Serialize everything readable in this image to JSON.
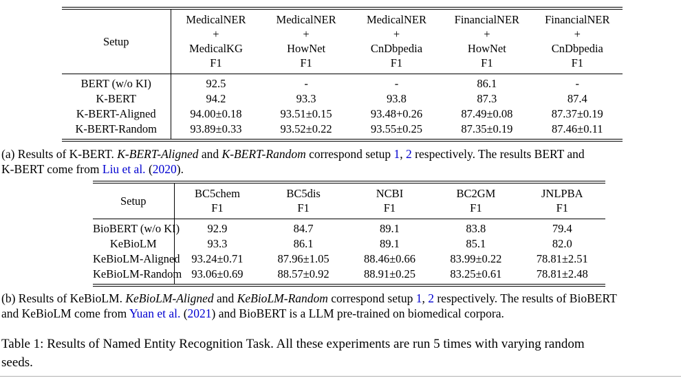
{
  "colors": {
    "link_blue": "#0000d0",
    "text": "#000000",
    "bottom_rule_gray": "#b0b0b0"
  },
  "table_a": {
    "setup_header": "Setup",
    "columns": [
      [
        "MedicalNER",
        "+",
        "MedicalKG",
        "F1"
      ],
      [
        "MedicalNER",
        "+",
        "HowNet",
        "F1"
      ],
      [
        "MedicalNER",
        "+",
        "CnDbpedia",
        "F1"
      ],
      [
        "FinancialNER",
        "+",
        "HowNet",
        "F1"
      ],
      [
        "FinancialNER",
        "+",
        "CnDbpedia",
        "F1"
      ]
    ],
    "rows": [
      {
        "setup": "BERT (w/o KI)",
        "cells": [
          {
            "v": "92.5",
            "b": false
          },
          {
            "v": "-",
            "b": false
          },
          {
            "v": "-",
            "b": false
          },
          {
            "v": "86.1",
            "b": false
          },
          {
            "v": "-",
            "b": false
          }
        ]
      },
      {
        "setup": "K-BERT",
        "cells": [
          {
            "v": "94.2",
            "b": false
          },
          {
            "v": "93.3",
            "b": false
          },
          {
            "v": "93.8",
            "b": false
          },
          {
            "v": "87.3",
            "b": false
          },
          {
            "v": "87.4",
            "b": false
          }
        ]
      },
      {
        "setup": "K-BERT-Aligned",
        "cells": [
          {
            "v": "94.00±0.18",
            "b": true
          },
          {
            "v": "93.51±0.15",
            "b": false
          },
          {
            "v": "93.48+0.26",
            "b": false
          },
          {
            "v": "87.49±0.08",
            "b": true
          },
          {
            "v": "87.37±0.19",
            "b": false
          }
        ]
      },
      {
        "setup": "K-BERT-Random",
        "cells": [
          {
            "v": "93.89±0.33",
            "b": false
          },
          {
            "v": "93.52±0.22",
            "b": true
          },
          {
            "v": "93.55±0.25",
            "b": true
          },
          {
            "v": "87.35±0.19",
            "b": false
          },
          {
            "v": "87.46±0.11",
            "b": true
          }
        ]
      }
    ]
  },
  "caption_a": {
    "segments": [
      {
        "t": "(a) Results of K-BERT. ",
        "s": "plain"
      },
      {
        "t": "K-BERT-Aligned",
        "s": "italic"
      },
      {
        "t": " and ",
        "s": "plain"
      },
      {
        "t": "K-BERT-Random",
        "s": "italic"
      },
      {
        "t": " correspond setup ",
        "s": "plain"
      },
      {
        "t": "1",
        "s": "link"
      },
      {
        "t": ", ",
        "s": "plain"
      },
      {
        "t": "2",
        "s": "link"
      },
      {
        "t": " respectively.  The results BERT and",
        "s": "plain"
      },
      {
        "t": "",
        "s": "br"
      },
      {
        "t": "K-BERT come from ",
        "s": "plain"
      },
      {
        "t": "Liu et al.",
        "s": "link"
      },
      {
        "t": " (",
        "s": "plain"
      },
      {
        "t": "2020",
        "s": "link"
      },
      {
        "t": ").",
        "s": "plain"
      }
    ]
  },
  "table_b": {
    "setup_header": "Setup",
    "columns": [
      [
        "BC5chem",
        "F1"
      ],
      [
        "BC5dis",
        "F1"
      ],
      [
        "NCBI",
        "F1"
      ],
      [
        "BC2GM",
        "F1"
      ],
      [
        "JNLPBA",
        "F1"
      ]
    ],
    "rows": [
      {
        "setup": "BioBERT (w/o KI)",
        "cells": [
          {
            "v": "92.9",
            "b": false
          },
          {
            "v": "84.7",
            "b": false
          },
          {
            "v": "89.1",
            "b": false
          },
          {
            "v": "83.8",
            "b": false
          },
          {
            "v": "79.4",
            "b": false
          }
        ]
      },
      {
        "setup": "KeBioLM",
        "cells": [
          {
            "v": "93.3",
            "b": false
          },
          {
            "v": "86.1",
            "b": false
          },
          {
            "v": "89.1",
            "b": false
          },
          {
            "v": "85.1",
            "b": false
          },
          {
            "v": "82.0",
            "b": false
          }
        ]
      },
      {
        "setup": "KeBioLM-Aligned",
        "cells": [
          {
            "v": "93.24±0.71",
            "b": true
          },
          {
            "v": "87.96±1.05",
            "b": false
          },
          {
            "v": "88.46±0.66",
            "b": false
          },
          {
            "v": "83.99±0.22",
            "b": true
          },
          {
            "v": "78.81±2.51",
            "b": false
          }
        ]
      },
      {
        "setup": "KeBioLM-Random",
        "cells": [
          {
            "v": "93.06±0.69",
            "b": false
          },
          {
            "v": "88.57±0.92",
            "b": true
          },
          {
            "v": "88.91±0.25",
            "b": true
          },
          {
            "v": "83.25±0.61",
            "b": false
          },
          {
            "v": "78.81±2.48",
            "b": true
          }
        ]
      }
    ]
  },
  "caption_b": {
    "segments": [
      {
        "t": "(b) Results of KeBioLM. ",
        "s": "plain"
      },
      {
        "t": "KeBioLM-Aligned",
        "s": "italic"
      },
      {
        "t": " and ",
        "s": "plain"
      },
      {
        "t": "KeBioLM-Random",
        "s": "italic"
      },
      {
        "t": " correspond setup ",
        "s": "plain"
      },
      {
        "t": "1",
        "s": "link"
      },
      {
        "t": ", ",
        "s": "plain"
      },
      {
        "t": "2",
        "s": "link"
      },
      {
        "t": " respectively.  The results of BioBERT",
        "s": "plain"
      },
      {
        "t": "",
        "s": "br"
      },
      {
        "t": "and KeBioLM come from ",
        "s": "plain"
      },
      {
        "t": "Yuan et al.",
        "s": "link"
      },
      {
        "t": " (",
        "s": "plain"
      },
      {
        "t": "2021",
        "s": "link"
      },
      {
        "t": ") and BioBERT is a LLM pre-trained on biomedical corpora.",
        "s": "plain"
      }
    ]
  },
  "main_caption": {
    "segments": [
      {
        "t": "Table 1: Results of Named Entity Recognition Task. All these experiments are run 5 times with varying random",
        "s": "plain"
      },
      {
        "t": "",
        "s": "br"
      },
      {
        "t": "seeds.",
        "s": "plain"
      }
    ]
  }
}
